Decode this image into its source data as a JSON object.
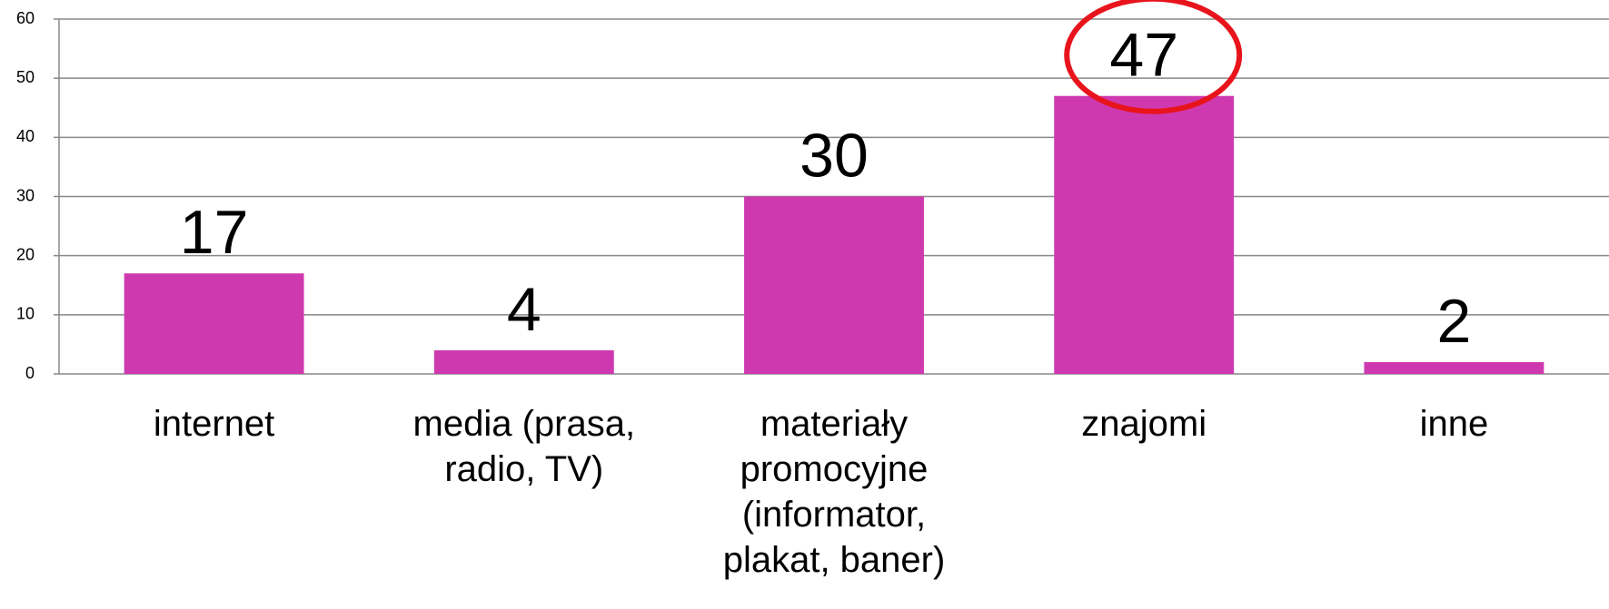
{
  "chart_data": {
    "type": "bar",
    "categories": [
      "internet",
      "media (prasa, radio, TV)",
      "materiały promocyjne (informator, plakat, baner)",
      "znajomi",
      "inne"
    ],
    "values": [
      17,
      4,
      30,
      47,
      2
    ],
    "color": "#cf39b0",
    "ylim": [
      0,
      60
    ],
    "yticks": [
      0,
      10,
      20,
      30,
      40,
      50,
      60
    ],
    "grid": true
  }
}
